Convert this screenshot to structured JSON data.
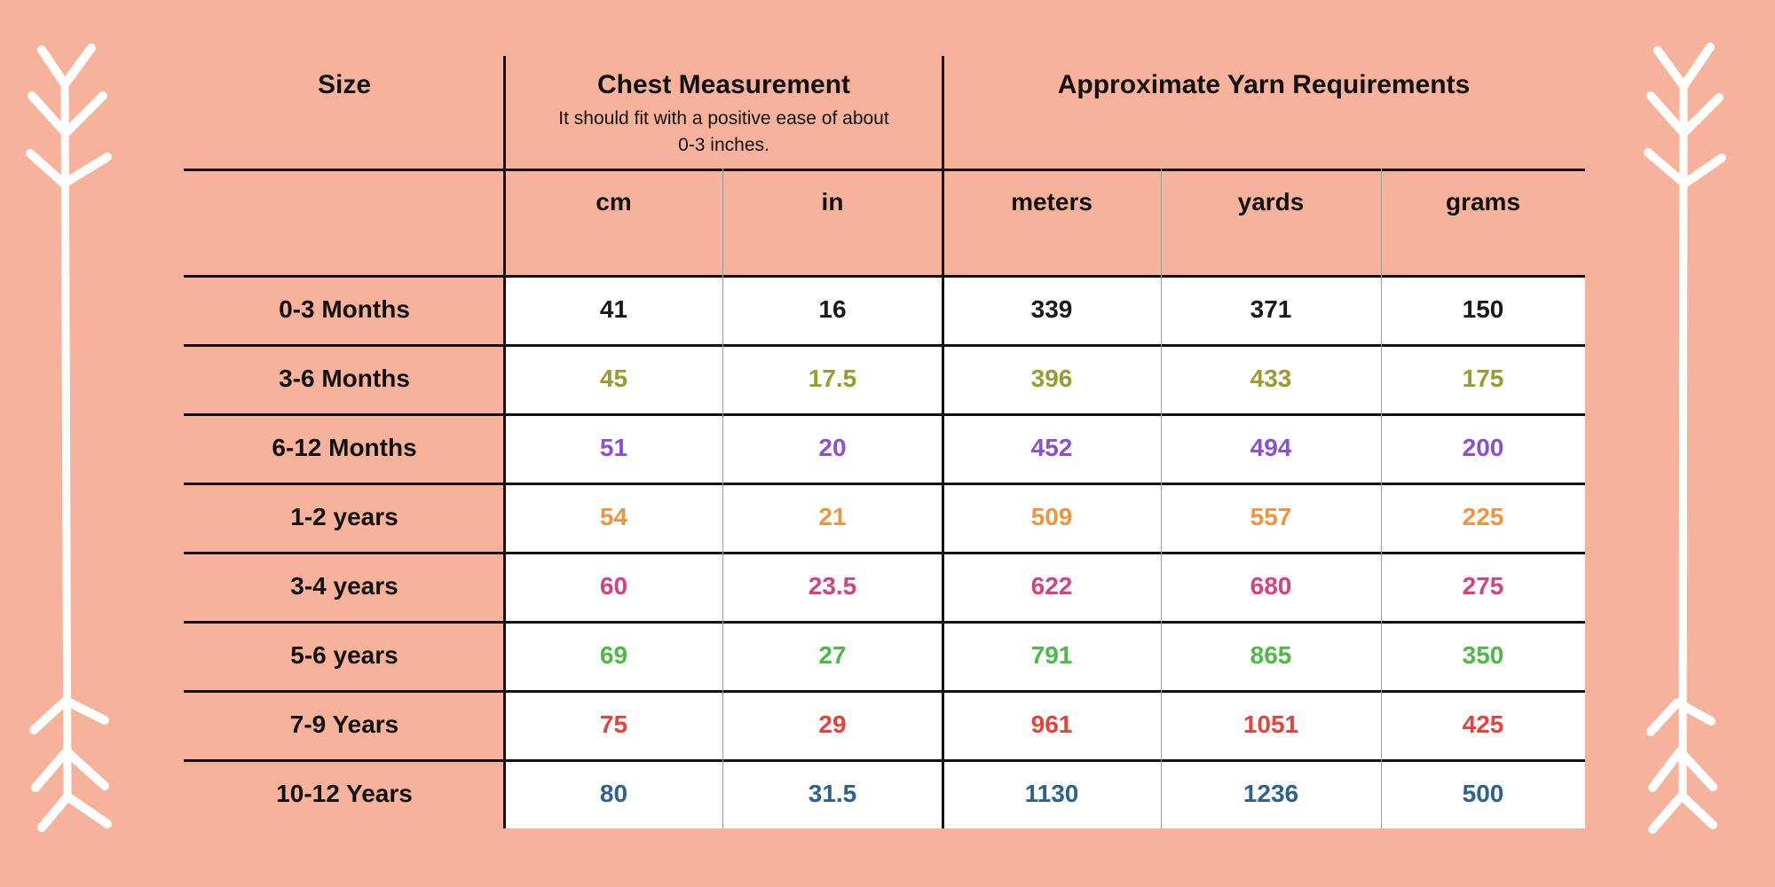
{
  "colors": {
    "background": "#f6b29b",
    "cell_background": "#ffffff",
    "grid_line_black": "#111111",
    "grid_line_gray": "#9a9a9a",
    "decoration_white": "#ffffff",
    "header_text": "#111111"
  },
  "decorations": {
    "left": "branch-arrow",
    "right": "branch-arrow"
  },
  "chart_data": {
    "type": "table",
    "column_groups": [
      {
        "label": "Size",
        "span": 1
      },
      {
        "label": "Chest Measurement",
        "span": 2,
        "note_lines": [
          "It should fit with a positive ease of about",
          "0-3 inches."
        ]
      },
      {
        "label": "Approximate Yarn Requirements",
        "span": 3
      }
    ],
    "columns": [
      "Size",
      "cm",
      "in",
      "meters",
      "yards",
      "grams"
    ],
    "rows": [
      {
        "size": "0-3 Months",
        "values": [
          "41",
          "16",
          "339",
          "371",
          "150"
        ],
        "color": "#1a1a1a"
      },
      {
        "size": "3-6 Months",
        "values": [
          "45",
          "17.5",
          "396",
          "433",
          "175"
        ],
        "color": "#9b9b30"
      },
      {
        "size": "6-12 Months",
        "values": [
          "51",
          "20",
          "452",
          "494",
          "200"
        ],
        "color": "#8a50d2"
      },
      {
        "size": "1-2 years",
        "values": [
          "54",
          "21",
          "509",
          "557",
          "225"
        ],
        "color": "#f0953f"
      },
      {
        "size": "3-4 years",
        "values": [
          "60",
          "23.5",
          "622",
          "680",
          "275"
        ],
        "color": "#d6417f"
      },
      {
        "size": "5-6 years",
        "values": [
          "69",
          "27",
          "791",
          "865",
          "350"
        ],
        "color": "#4cba44"
      },
      {
        "size": "7-9 Years",
        "values": [
          "75",
          "29",
          "961",
          "1051",
          "425"
        ],
        "color": "#e6423a"
      },
      {
        "size": "10-12 Years",
        "values": [
          "80",
          "31.5",
          "1130",
          "1236",
          "500"
        ],
        "color": "#2d6191"
      }
    ]
  }
}
